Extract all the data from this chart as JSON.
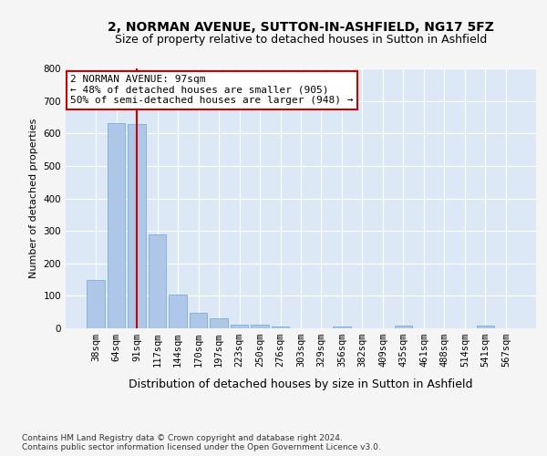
{
  "title1": "2, NORMAN AVENUE, SUTTON-IN-ASHFIELD, NG17 5FZ",
  "title2": "Size of property relative to detached houses in Sutton in Ashfield",
  "xlabel": "Distribution of detached houses by size in Sutton in Ashfield",
  "ylabel": "Number of detached properties",
  "categories": [
    "38sqm",
    "64sqm",
    "91sqm",
    "117sqm",
    "144sqm",
    "170sqm",
    "197sqm",
    "223sqm",
    "250sqm",
    "276sqm",
    "303sqm",
    "329sqm",
    "356sqm",
    "382sqm",
    "409sqm",
    "435sqm",
    "461sqm",
    "488sqm",
    "514sqm",
    "541sqm",
    "567sqm"
  ],
  "values": [
    150,
    632,
    628,
    288,
    104,
    47,
    30,
    12,
    12,
    5,
    0,
    0,
    5,
    0,
    0,
    8,
    0,
    0,
    0,
    8,
    0
  ],
  "bar_color": "#aec6e8",
  "bar_edge_color": "#7aafd4",
  "redline_index": 2,
  "annotation_line1": "2 NORMAN AVENUE: 97sqm",
  "annotation_line2": "← 48% of detached houses are smaller (905)",
  "annotation_line3": "50% of semi-detached houses are larger (948) →",
  "annotation_box_color": "#ffffff",
  "annotation_box_edge_color": "#cc0000",
  "footnote": "Contains HM Land Registry data © Crown copyright and database right 2024.\nContains public sector information licensed under the Open Government Licence v3.0.",
  "ylim": [
    0,
    800
  ],
  "yticks": [
    0,
    100,
    200,
    300,
    400,
    500,
    600,
    700,
    800
  ],
  "background_color": "#dce8f5",
  "grid_color": "#ffffff",
  "title1_fontsize": 10,
  "title2_fontsize": 9,
  "xlabel_fontsize": 9,
  "ylabel_fontsize": 8,
  "tick_fontsize": 7.5,
  "annot_fontsize": 8,
  "footnote_fontsize": 6.5
}
